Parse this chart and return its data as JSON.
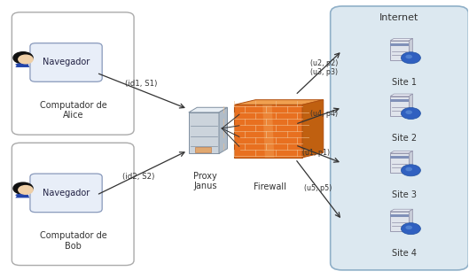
{
  "bg_color": "#ffffff",
  "border_color": "#3AAABB",
  "label_computador_alice": "Computador de\nAlice",
  "label_computador_bob": "Computador de\nBob",
  "label_navegador": "Navegador",
  "label_proxy": "Proxy\nJanus",
  "label_firewall": "Firewall",
  "label_internet": "Internet",
  "sites": [
    "Site 1",
    "Site 2",
    "Site 3",
    "Site 4"
  ],
  "font_size_label": 7.0,
  "font_size_title": 8.0,
  "font_size_site": 7.0,
  "nav_fill": "#e8eef8",
  "nav_edge": "#8899bb",
  "box_edge": "#aaaaaa",
  "inet_fill": "#dce8f0",
  "inet_edge": "#90b0c8"
}
